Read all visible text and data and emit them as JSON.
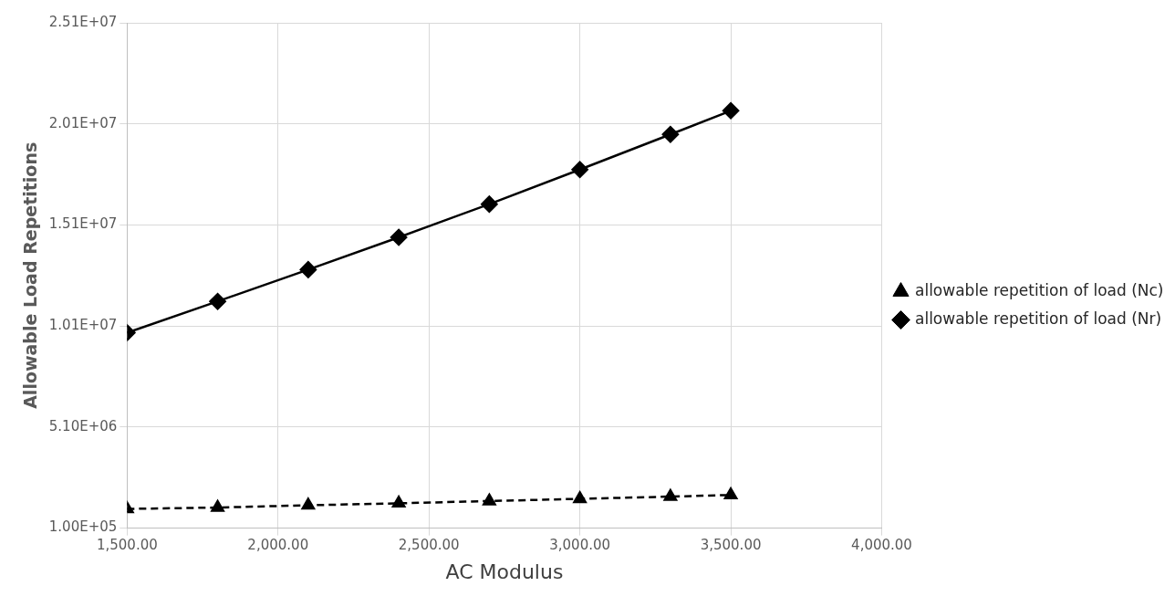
{
  "chart_data": {
    "type": "line",
    "xlabel": "AC Modulus",
    "ylabel": "Allowable Load Repetitions",
    "x": [
      1500,
      1800,
      2100,
      2400,
      2700,
      3000,
      3300,
      3500
    ],
    "series": [
      {
        "name": "allowable repetition of load (Nc)",
        "color": "#000000",
        "marker": "triangle",
        "line_style": "dashed",
        "values": [
          1050000,
          1120000,
          1230000,
          1330000,
          1440000,
          1550000,
          1660000,
          1740000
        ]
      },
      {
        "name": "allowable repetition of load (Nr)",
        "color": "#000000",
        "marker": "diamond",
        "line_style": "solid",
        "values": [
          9770000,
          11320000,
          12890000,
          14490000,
          16130000,
          17840000,
          19580000,
          20750000
        ]
      }
    ],
    "xlim": [
      1500,
      4000
    ],
    "xticks": [
      {
        "value": 1500,
        "label": "1,500.00"
      },
      {
        "value": 2000,
        "label": "2,000.00"
      },
      {
        "value": 2500,
        "label": "2,500.00"
      },
      {
        "value": 3000,
        "label": "3,000.00"
      },
      {
        "value": 3500,
        "label": "3,500.00"
      },
      {
        "value": 4000,
        "label": "4,000.00"
      }
    ],
    "ylim": [
      100000,
      25100000
    ],
    "yticks": [
      {
        "value": 100000,
        "label": "1.00E+05"
      },
      {
        "value": 5100000,
        "label": "5.10E+06"
      },
      {
        "value": 10100000,
        "label": "1.01E+07"
      },
      {
        "value": 15100000,
        "label": "1.51E+07"
      },
      {
        "value": 20100000,
        "label": "2.01E+07"
      },
      {
        "value": 25100000,
        "label": "2.51E+07"
      }
    ],
    "grid": true,
    "legend": "right"
  }
}
